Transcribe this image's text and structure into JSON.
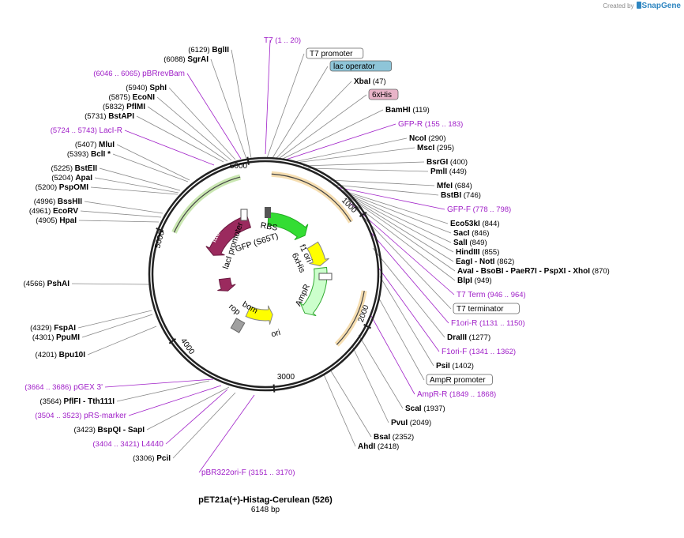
{
  "credit": {
    "prefix": "Created by",
    "brand": "SnapGene"
  },
  "plasmid": {
    "name": "pET21a(+)-Histag-Cerulean (526)",
    "size_label": "6148 bp"
  },
  "colors": {
    "purple": "#a020c8",
    "lacI": "#9b2a5e",
    "gfp": "#33dd33",
    "f1ori": "#ffff00",
    "ampr": "#ccffcc",
    "ori": "#ffff00",
    "rop": "#9b2a5e",
    "bom": "#a0a0a0",
    "promoter_ring": "#e6a020",
    "lacI_ring": "#66bb22"
  },
  "scale_ticks": [
    "1000",
    "2000",
    "3000",
    "4000",
    "5000",
    "6000"
  ],
  "labels": [
    {
      "name": "T7",
      "range": "(1 .. 20)",
      "kind": "primer"
    },
    {
      "name": "BglII",
      "pos": "(6129)",
      "kind": "site"
    },
    {
      "name": "T7 promoter",
      "kind": "box"
    },
    {
      "name": "SgrAI",
      "pos": "(6088)",
      "kind": "site"
    },
    {
      "name": "lac operator",
      "kind": "box-blue"
    },
    {
      "name": "pBRrevBam",
      "range": "(6046 .. 6065)",
      "kind": "primer"
    },
    {
      "name": "XbaI",
      "pos": "(47)",
      "kind": "site"
    },
    {
      "name": "SphI",
      "pos": "(5940)",
      "kind": "site"
    },
    {
      "name": "6xHis",
      "kind": "box-pink"
    },
    {
      "name": "EcoNI",
      "pos": "(5875)",
      "kind": "site"
    },
    {
      "name": "PflMI",
      "pos": "(5832)",
      "kind": "site"
    },
    {
      "name": "BamHI",
      "pos": "(119)",
      "kind": "site"
    },
    {
      "name": "BstAPI",
      "pos": "(5731)",
      "kind": "site"
    },
    {
      "name": "GFP-R",
      "range": "(155 .. 183)",
      "kind": "primer"
    },
    {
      "name": "LacI-R",
      "range": "(5724 .. 5743)",
      "kind": "primer"
    },
    {
      "name": "NcoI",
      "pos": "(290)",
      "kind": "site"
    },
    {
      "name": "MluI",
      "pos": "(5407)",
      "kind": "site"
    },
    {
      "name": "MscI",
      "pos": "(295)",
      "kind": "site"
    },
    {
      "name": "BclI *",
      "pos": "(5393)",
      "kind": "site"
    },
    {
      "name": "BsrGI",
      "pos": "(400)",
      "kind": "site"
    },
    {
      "name": "BstEII",
      "pos": "(5225)",
      "kind": "site"
    },
    {
      "name": "PmlI",
      "pos": "(449)",
      "kind": "site"
    },
    {
      "name": "ApaI",
      "pos": "(5204)",
      "kind": "site"
    },
    {
      "name": "MfeI",
      "pos": "(684)",
      "kind": "site"
    },
    {
      "name": "PspOMI",
      "pos": "(5200)",
      "kind": "site"
    },
    {
      "name": "BstBI",
      "pos": "(746)",
      "kind": "site"
    },
    {
      "name": "BssHII",
      "pos": "(4996)",
      "kind": "site"
    },
    {
      "name": "GFP-F",
      "range": "(778 .. 798)",
      "kind": "primer"
    },
    {
      "name": "EcoRV",
      "pos": "(4961)",
      "kind": "site"
    },
    {
      "name": "HpaI",
      "pos": "(4905)",
      "kind": "site"
    },
    {
      "name": "Eco53kI",
      "pos": "(844)",
      "kind": "site"
    },
    {
      "name": "SacI",
      "pos": "(846)",
      "kind": "site"
    },
    {
      "name": "SalI",
      "pos": "(849)",
      "kind": "site"
    },
    {
      "name": "HindIII",
      "pos": "(855)",
      "kind": "site"
    },
    {
      "name": "EagI - NotI",
      "pos": "(862)",
      "kind": "site"
    },
    {
      "name": "AvaI - BsoBI - PaeR7I - PspXI - XhoI",
      "pos": "(870)",
      "kind": "site"
    },
    {
      "name": "PshAI",
      "pos": "(4566)",
      "kind": "site"
    },
    {
      "name": "BlpI",
      "pos": "(949)",
      "kind": "site"
    },
    {
      "name": "T7 Term",
      "range": "(946 .. 964)",
      "kind": "primer"
    },
    {
      "name": "T7 terminator",
      "kind": "box"
    },
    {
      "name": "FspAI",
      "pos": "(4329)",
      "kind": "site"
    },
    {
      "name": "PpuMI",
      "pos": "(4301)",
      "kind": "site"
    },
    {
      "name": "F1ori-R",
      "range": "(1131 .. 1150)",
      "kind": "primer"
    },
    {
      "name": "DraIII",
      "pos": "(1277)",
      "kind": "site"
    },
    {
      "name": "Bpu10I",
      "pos": "(4201)",
      "kind": "site"
    },
    {
      "name": "F1ori-F",
      "range": "(1341 .. 1362)",
      "kind": "primer"
    },
    {
      "name": "PsiI",
      "pos": "(1402)",
      "kind": "site"
    },
    {
      "name": "AmpR promoter",
      "kind": "box"
    },
    {
      "name": "pGEX 3'",
      "range": "(3664 .. 3686)",
      "kind": "primer"
    },
    {
      "name": "PflFI - Tth111I",
      "pos": "(3564)",
      "kind": "site"
    },
    {
      "name": "AmpR-R",
      "range": "(1849 .. 1868)",
      "kind": "primer"
    },
    {
      "name": "pRS-marker",
      "range": "(3504 .. 3523)",
      "kind": "primer"
    },
    {
      "name": "ScaI",
      "pos": "(1937)",
      "kind": "site"
    },
    {
      "name": "BspQI - SapI",
      "pos": "(3423)",
      "kind": "site"
    },
    {
      "name": "PvuI",
      "pos": "(2049)",
      "kind": "site"
    },
    {
      "name": "L4440",
      "range": "(3404 .. 3421)",
      "kind": "primer"
    },
    {
      "name": "BsaI",
      "pos": "(2352)",
      "kind": "site"
    },
    {
      "name": "AhdI",
      "pos": "(2418)",
      "kind": "site"
    },
    {
      "name": "PciI",
      "pos": "(3306)",
      "kind": "site"
    },
    {
      "name": "pBR322ori-F",
      "range": "(3151 .. 3170)",
      "kind": "primer"
    }
  ],
  "features": [
    "lacI",
    "lacI promoter",
    "RBS",
    "GFP (S65T)",
    "f1 ori",
    "6xHis",
    "AmpR",
    "bom",
    "rop",
    "ori"
  ]
}
